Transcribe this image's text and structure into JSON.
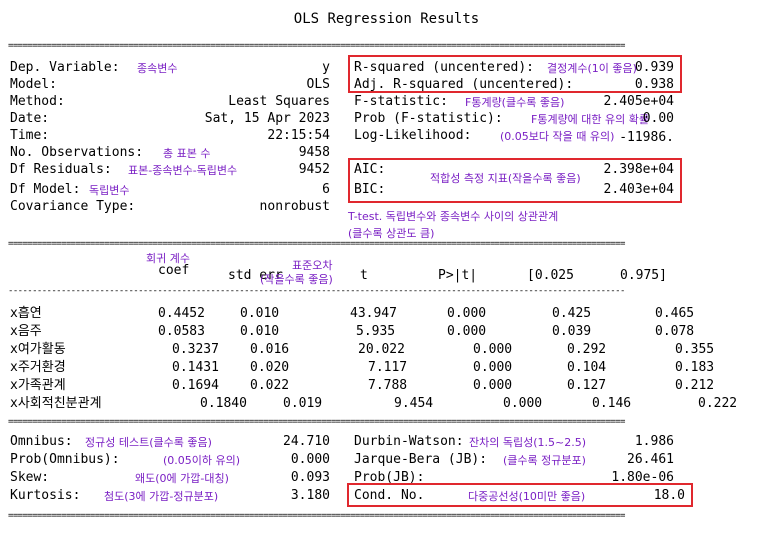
{
  "title": "OLS Regression Results",
  "rule": "================================================================================================================================",
  "rule_mid": "--------------------------------------------------------------------------------------------------------------------------------",
  "top_left": [
    {
      "label": "Dep. Variable:",
      "note": "종속변수",
      "value": "y"
    },
    {
      "label": "Model:",
      "note": "",
      "value": "OLS"
    },
    {
      "label": "Method:",
      "note": "",
      "value": "Least Squares"
    },
    {
      "label": "Date:",
      "note": "",
      "value": "Sat, 15 Apr 2023"
    },
    {
      "label": "Time:",
      "note": "",
      "value": "22:15:54"
    },
    {
      "label": "No. Observations:",
      "note": "총 표본 수",
      "value": "9458"
    },
    {
      "label": "Df Residuals:",
      "note": "표본-종속변수-독립변수",
      "value": "9452"
    },
    {
      "label": "Df Model:",
      "note": "독립변수",
      "value": "6"
    },
    {
      "label": "Covariance Type:",
      "note": "",
      "value": "nonrobust"
    }
  ],
  "top_right": [
    {
      "label": "R-squared (uncentered):",
      "note": "결정계수(1이 좋음)",
      "value": "0.939"
    },
    {
      "label": "Adj. R-squared (uncentered):",
      "note": "",
      "value": "0.938"
    },
    {
      "label": "F-statistic:",
      "note": "F통계량(클수록 좋음)",
      "value": "2.405e+04"
    },
    {
      "label": "Prob (F-statistic):",
      "note": "F통계량에 대한 유의 확률",
      "value": "0.00"
    },
    {
      "label": "Log-Likelihood:",
      "note": "(0.05보다 작을 때 유의)",
      "value": "-11986."
    },
    {
      "label": "AIC:",
      "note": "",
      "value": "2.398e+04"
    },
    {
      "label": "BIC:",
      "note": "",
      "value": "2.403e+04"
    }
  ],
  "aic_bic_note": "적합성 측정 지표(작을수록 좋음)",
  "ttest_note_1": "T-test. 독립변수와 종속변수 사이의 상관관계",
  "ttest_note_2": "(클수록 상관도 큼)",
  "coef_header": [
    "coef",
    "std err",
    "t",
    "P>|t|",
    "[0.025",
    "0.975]"
  ],
  "coef_note": "회귀 계수",
  "stderr_note_1": "표준오차",
  "stderr_note_2": "(작을수록 좋음)",
  "coef_rows": [
    {
      "name": "x흡연",
      "coef": "0.4452",
      "se": "0.010",
      "t": "43.947",
      "p": "0.000",
      "lo": "0.425",
      "hi": "0.465"
    },
    {
      "name": "x음주",
      "coef": "0.0583",
      "se": "0.010",
      "t": "5.935",
      "p": "0.000",
      "lo": "0.039",
      "hi": "0.078"
    },
    {
      "name": "x여가활동",
      "coef": "0.3237",
      "se": "0.016",
      "t": "20.022",
      "p": "0.000",
      "lo": "0.292",
      "hi": "0.355"
    },
    {
      "name": "x주거환경",
      "coef": "0.1431",
      "se": "0.020",
      "t": "7.117",
      "p": "0.000",
      "lo": "0.104",
      "hi": "0.183"
    },
    {
      "name": "x가족관계",
      "coef": "0.1694",
      "se": "0.022",
      "t": "7.788",
      "p": "0.000",
      "lo": "0.127",
      "hi": "0.212"
    },
    {
      "name": "x사회적친분관계",
      "coef": "0.1840",
      "se": "0.019",
      "t": "9.454",
      "p": "0.000",
      "lo": "0.146",
      "hi": "0.222"
    }
  ],
  "bottom_left": [
    {
      "label": "Omnibus:",
      "note": "정규성 테스트(클수록 좋음)",
      "value": "24.710"
    },
    {
      "label": "Prob(Omnibus):",
      "note": "(0.05이하 유의)",
      "value": "0.000"
    },
    {
      "label": "Skew:",
      "note": "왜도(0에 가깝-대칭)",
      "value": "0.093"
    },
    {
      "label": "Kurtosis:",
      "note": "첨도(3에 가깝-정규분포)",
      "value": "3.180"
    }
  ],
  "bottom_right": [
    {
      "label": "Durbin-Watson:",
      "note": "잔차의 독립성(1.5~2.5)",
      "value": "1.986"
    },
    {
      "label": "Jarque-Bera (JB):",
      "note": "(클수록 정규분포)",
      "value": "26.461"
    },
    {
      "label": "Prob(JB):",
      "note": "",
      "value": "1.80e-06"
    },
    {
      "label": "Cond. No.",
      "note": "다중공선성(10미만 좋음)",
      "value": "18.0"
    }
  ],
  "colors": {
    "annotation": "#7a1fc4",
    "highlight_box": "#e0282e"
  }
}
